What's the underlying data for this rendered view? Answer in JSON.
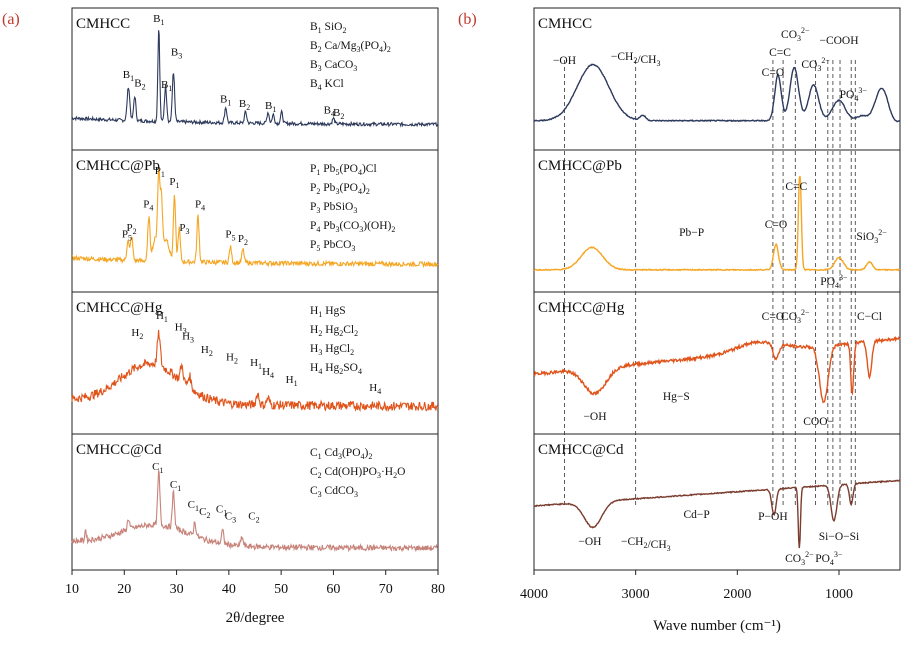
{
  "chart_data": [
    {
      "type": "line",
      "panel_label": "(a)",
      "xlabel": "2θ/degree",
      "xlim": [
        10,
        80
      ],
      "x_ticks": [
        "10",
        "20",
        "30",
        "40",
        "50",
        "60",
        "70",
        "80"
      ],
      "x_tick_values": [
        10,
        20,
        30,
        40,
        50,
        60,
        70,
        80
      ],
      "ylabel": "",
      "stacked_panels": [
        {
          "name": "CMHCC",
          "color": "#2e3a5c",
          "baseline": 0.1,
          "noise": 0.015,
          "peaks": [
            [
              26.6,
              0.85,
              0.25
            ],
            [
              29.4,
              0.45,
              0.3
            ],
            [
              27.9,
              0.32,
              0.3
            ],
            [
              20.8,
              0.3,
              0.35
            ],
            [
              22.0,
              0.22,
              0.3
            ],
            [
              39.4,
              0.14,
              0.3
            ],
            [
              43.2,
              0.1,
              0.3
            ],
            [
              47.5,
              0.1,
              0.3
            ],
            [
              48.5,
              0.08,
              0.3
            ],
            [
              50.1,
              0.1,
              0.3
            ],
            [
              60.0,
              0.05,
              0.3
            ]
          ],
          "annotations": [
            {
              "text": "B",
              "sub": "1",
              "x": 26.6,
              "level": 1.02
            },
            {
              "text": "B",
              "sub": "3",
              "x": 30.0,
              "level": 0.72
            },
            {
              "text": "B",
              "sub": "1",
              "x": 20.8,
              "level": 0.52
            },
            {
              "text": "B",
              "sub": "2",
              "x": 23.0,
              "level": 0.44
            },
            {
              "text": "B",
              "sub": "1",
              "x": 28.1,
              "level": 0.43
            },
            {
              "text": "B",
              "sub": "1",
              "x": 39.4,
              "level": 0.3
            },
            {
              "text": "B",
              "sub": "2",
              "x": 43.0,
              "level": 0.26
            },
            {
              "text": "B",
              "sub": "1",
              "x": 48.0,
              "level": 0.24
            },
            {
              "text": "B",
              "sub": "4",
              "x": 59.2,
              "level": 0.2
            },
            {
              "text": "B",
              "sub": "2",
              "x": 61.0,
              "level": 0.18
            }
          ],
          "legend": [
            {
              "id": "B1",
              "chem": "SiO2"
            },
            {
              "id": "B2",
              "chem": "Ca/Mg3(PO4)2"
            },
            {
              "id": "B3",
              "chem": "CaCO3"
            },
            {
              "id": "B4",
              "chem": "KCl"
            }
          ]
        },
        {
          "name": "CMHCC@Pb",
          "color": "#f5a623",
          "baseline": 0.12,
          "noise": 0.02,
          "peaks": [
            [
              26.6,
              0.68,
              0.3
            ],
            [
              27.1,
              0.5,
              0.3
            ],
            [
              29.6,
              0.58,
              0.3
            ],
            [
              24.7,
              0.38,
              0.3
            ],
            [
              34.1,
              0.42,
              0.3
            ],
            [
              30.5,
              0.3,
              0.3
            ],
            [
              20.7,
              0.18,
              0.3
            ],
            [
              21.4,
              0.22,
              0.3
            ],
            [
              40.3,
              0.14,
              0.3
            ],
            [
              42.7,
              0.12,
              0.3
            ],
            [
              26.0,
              0.2,
              0.8
            ],
            [
              28.0,
              0.2,
              0.8
            ]
          ],
          "annotations": [
            {
              "text": "P",
              "sub": "1",
              "x": 26.8,
              "level": 0.93
            },
            {
              "text": "P",
              "sub": "1",
              "x": 29.6,
              "level": 0.83
            },
            {
              "text": "P",
              "sub": "4",
              "x": 24.6,
              "level": 0.63
            },
            {
              "text": "P",
              "sub": "4",
              "x": 34.5,
              "level": 0.63
            },
            {
              "text": "P",
              "sub": "2",
              "x": 21.4,
              "level": 0.42
            },
            {
              "text": "P",
              "sub": "5",
              "x": 20.5,
              "level": 0.36
            },
            {
              "text": "P",
              "sub": "3",
              "x": 31.5,
              "level": 0.42
            },
            {
              "text": "P",
              "sub": "5",
              "x": 40.3,
              "level": 0.36
            },
            {
              "text": "P",
              "sub": "2",
              "x": 42.7,
              "level": 0.32
            }
          ],
          "legend": [
            {
              "id": "P1",
              "chem": "Pb5(PO4)Cl"
            },
            {
              "id": "P2",
              "chem": "Pb3(PO4)2"
            },
            {
              "id": "P3",
              "chem": "PbSiO3"
            },
            {
              "id": "P4",
              "chem": "Pb3(CO3)(OH)2"
            },
            {
              "id": "P5",
              "chem": "PbCO3"
            }
          ]
        },
        {
          "name": "CMHCC@Hg",
          "color": "#e0541b",
          "baseline": 0.12,
          "noise": 0.04,
          "hump": [
            25,
            0.35,
            8
          ],
          "peaks": [
            [
              26.6,
              0.28,
              0.4
            ],
            [
              31.0,
              0.14,
              0.4
            ],
            [
              32.5,
              0.1,
              0.4
            ],
            [
              45.5,
              0.1,
              0.4
            ],
            [
              47.5,
              0.06,
              0.4
            ]
          ],
          "annotations": [
            {
              "text": "H",
              "sub": "1",
              "x": 27.2,
              "level": 0.9
            },
            {
              "text": "H",
              "sub": "2",
              "x": 22.5,
              "level": 0.75
            },
            {
              "text": "H",
              "sub": "3",
              "x": 30.8,
              "level": 0.8
            },
            {
              "text": "H",
              "sub": "3",
              "x": 32.2,
              "level": 0.72
            },
            {
              "text": "H",
              "sub": "2",
              "x": 35.8,
              "level": 0.6
            },
            {
              "text": "H",
              "sub": "2",
              "x": 40.6,
              "level": 0.53
            },
            {
              "text": "H",
              "sub": "1",
              "x": 45.2,
              "level": 0.48
            },
            {
              "text": "H",
              "sub": "4",
              "x": 47.5,
              "level": 0.4
            },
            {
              "text": "H",
              "sub": "1",
              "x": 52.0,
              "level": 0.33
            },
            {
              "text": "H",
              "sub": "4",
              "x": 68.0,
              "level": 0.26
            }
          ],
          "legend": [
            {
              "id": "H1",
              "chem": "HgS"
            },
            {
              "id": "H2",
              "chem": "Hg2Cl2"
            },
            {
              "id": "H3",
              "chem": "HgCl2"
            },
            {
              "id": "H4",
              "chem": "Hg2SO4"
            }
          ]
        },
        {
          "name": "CMHCC@Cd",
          "color": "#c7837a",
          "baseline": 0.12,
          "noise": 0.025,
          "hump": [
            26,
            0.18,
            9
          ],
          "peaks": [
            [
              26.6,
              0.48,
              0.3
            ],
            [
              29.4,
              0.32,
              0.3
            ],
            [
              33.5,
              0.12,
              0.3
            ],
            [
              38.8,
              0.12,
              0.3
            ],
            [
              42.5,
              0.08,
              0.3
            ],
            [
              12.6,
              0.1,
              0.2
            ],
            [
              20.8,
              0.1,
              0.3
            ]
          ],
          "annotations": [
            {
              "text": "C",
              "sub": "1",
              "x": 26.4,
              "level": 0.82
            },
            {
              "text": "C",
              "sub": "1",
              "x": 29.8,
              "level": 0.66
            },
            {
              "text": "C",
              "sub": "1",
              "x": 33.2,
              "level": 0.48
            },
            {
              "text": "C",
              "sub": "2",
              "x": 35.4,
              "level": 0.42
            },
            {
              "text": "C",
              "sub": "1",
              "x": 38.6,
              "level": 0.44
            },
            {
              "text": "C",
              "sub": "3",
              "x": 40.3,
              "level": 0.38
            },
            {
              "text": "C",
              "sub": "2",
              "x": 44.8,
              "level": 0.38
            }
          ],
          "legend": [
            {
              "id": "C1",
              "chem": "Cd3(PO4)2"
            },
            {
              "id": "C2",
              "chem": "Cd(OH)PO3·H2O"
            },
            {
              "id": "C3",
              "chem": "CdCO3"
            }
          ]
        }
      ]
    },
    {
      "type": "line",
      "panel_label": "(b)",
      "xlabel": "Wave number (cm⁻¹)",
      "xlim": [
        4000,
        400
      ],
      "x_ticks": [
        "4000",
        "3000",
        "2000",
        "1000"
      ],
      "x_tick_values": [
        4000,
        3000,
        2000,
        1000
      ],
      "dashed_lines": [
        3700,
        3000,
        1650,
        1550,
        1430,
        1230,
        1110,
        1060,
        990,
        880,
        840
      ],
      "stacked_panels": [
        {
          "name": "CMHCC",
          "color": "#2e3a5c",
          "annotations": [
            "−OH",
            "−CH2/CH3",
            "C=O",
            "C=C",
            "CO3 2−",
            "CO3 2−",
            "−COOH",
            "PO4 3−"
          ]
        },
        {
          "name": "CMHCC@Pb",
          "color": "#f5a623",
          "annotations": [
            "Pb−P",
            "C=O",
            "C=C",
            "SiO3 2−",
            "PO4 3−"
          ]
        },
        {
          "name": "CMHCC@Hg",
          "color": "#e0541b",
          "annotations": [
            "C=O",
            "CO3 2−",
            "C−Cl",
            "−OH",
            "Hg−S",
            "COO−"
          ]
        },
        {
          "name": "CMHCC@Cd",
          "color": "#7a3c2e",
          "annotations": [
            "Cd−P",
            "−OH",
            "−CH2/CH3",
            "P−OH",
            "Si−O−Si",
            "CO3 2−",
            "PO4 3−"
          ]
        }
      ]
    }
  ]
}
